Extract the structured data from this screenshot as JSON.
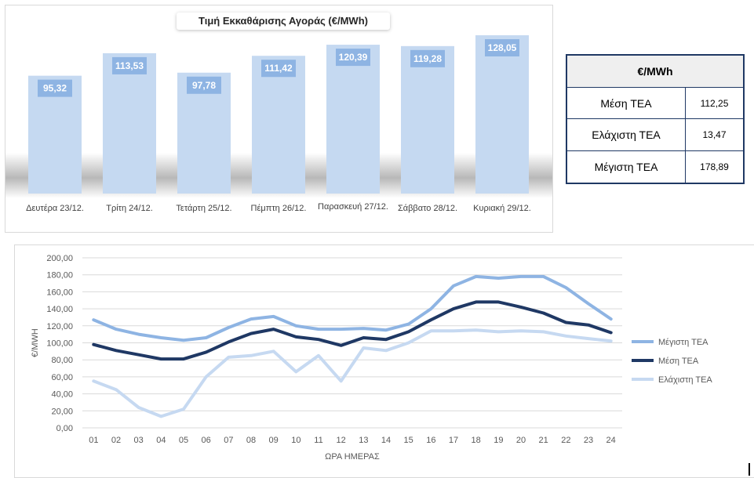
{
  "bar_chart": {
    "title": "Τιμή Εκκαθάρισης Αγοράς (€/MWh)",
    "bar_color": "#c5d9f1"
  },
  "stats_table": {
    "header": "€/MWh",
    "rows": [
      {
        "label": "Μέση ΤΕΑ",
        "value": "112,25"
      },
      {
        "label": "Ελάχιστη ΤΕΑ",
        "value": "13,47"
      },
      {
        "label": "Μέγιστη ΤΕΑ",
        "value": "178,89"
      }
    ],
    "border_color": "#1f3864"
  },
  "chart_data": [
    {
      "type": "bar",
      "title": "Τιμή Εκκαθάρισης Αγοράς (€/MWh)",
      "categories": [
        "Δευτέρα 23/12.",
        "Τρίτη 24/12.",
        "Τετάρτη 25/12.",
        "Πέμπτη 26/12.",
        "Παρασκευή 27/12.",
        "Σάββατο 28/12.",
        "Κυριακή 29/12."
      ],
      "values": [
        95.32,
        113.53,
        97.78,
        111.42,
        120.39,
        119.28,
        128.05
      ],
      "data_labels": [
        "95,32",
        "113,53",
        "97,78",
        "111,42",
        "120,39",
        "119,28",
        "128,05"
      ],
      "ylim": [
        0,
        128.05
      ],
      "grid": false,
      "xlabel": "",
      "ylabel": ""
    },
    {
      "type": "line",
      "title": "",
      "xlabel": "ΩΡΑ ΗΜΕΡΑΣ",
      "ylabel": "€/MWH",
      "x": [
        "01",
        "02",
        "03",
        "04",
        "05",
        "06",
        "07",
        "08",
        "09",
        "10",
        "11",
        "12",
        "13",
        "14",
        "15",
        "16",
        "17",
        "18",
        "19",
        "20",
        "21",
        "22",
        "23",
        "24"
      ],
      "ylim": [
        0,
        200
      ],
      "yticks": [
        "0,00",
        "20,00",
        "40,00",
        "60,00",
        "80,00",
        "100,00",
        "120,00",
        "140,00",
        "160,00",
        "180,00",
        "200,00"
      ],
      "grid": true,
      "legend": "right",
      "series": [
        {
          "name": "Μέγιστη ΤΕΑ",
          "color": "#8eb4e3",
          "values": [
            127,
            116,
            110,
            106,
            103,
            106,
            118,
            128,
            131,
            120,
            116,
            116,
            117,
            115,
            122,
            140,
            167,
            178,
            176,
            178,
            178,
            165,
            146,
            128
          ]
        },
        {
          "name": "Μέση ΤΕΑ",
          "color": "#1f3864",
          "values": [
            98,
            91,
            86,
            81,
            81,
            89,
            101,
            111,
            116,
            107,
            104,
            97,
            106,
            104,
            113,
            127,
            140,
            148,
            148,
            142,
            135,
            124,
            121,
            112
          ]
        },
        {
          "name": "Ελάχιστη ΤΕΑ",
          "color": "#c6d9f1",
          "values": [
            55,
            45,
            24,
            13.47,
            22,
            60,
            83,
            85,
            90,
            66,
            85,
            55,
            94,
            91,
            100,
            114,
            114,
            115,
            113,
            114,
            113,
            108,
            105,
            102
          ]
        }
      ]
    }
  ]
}
